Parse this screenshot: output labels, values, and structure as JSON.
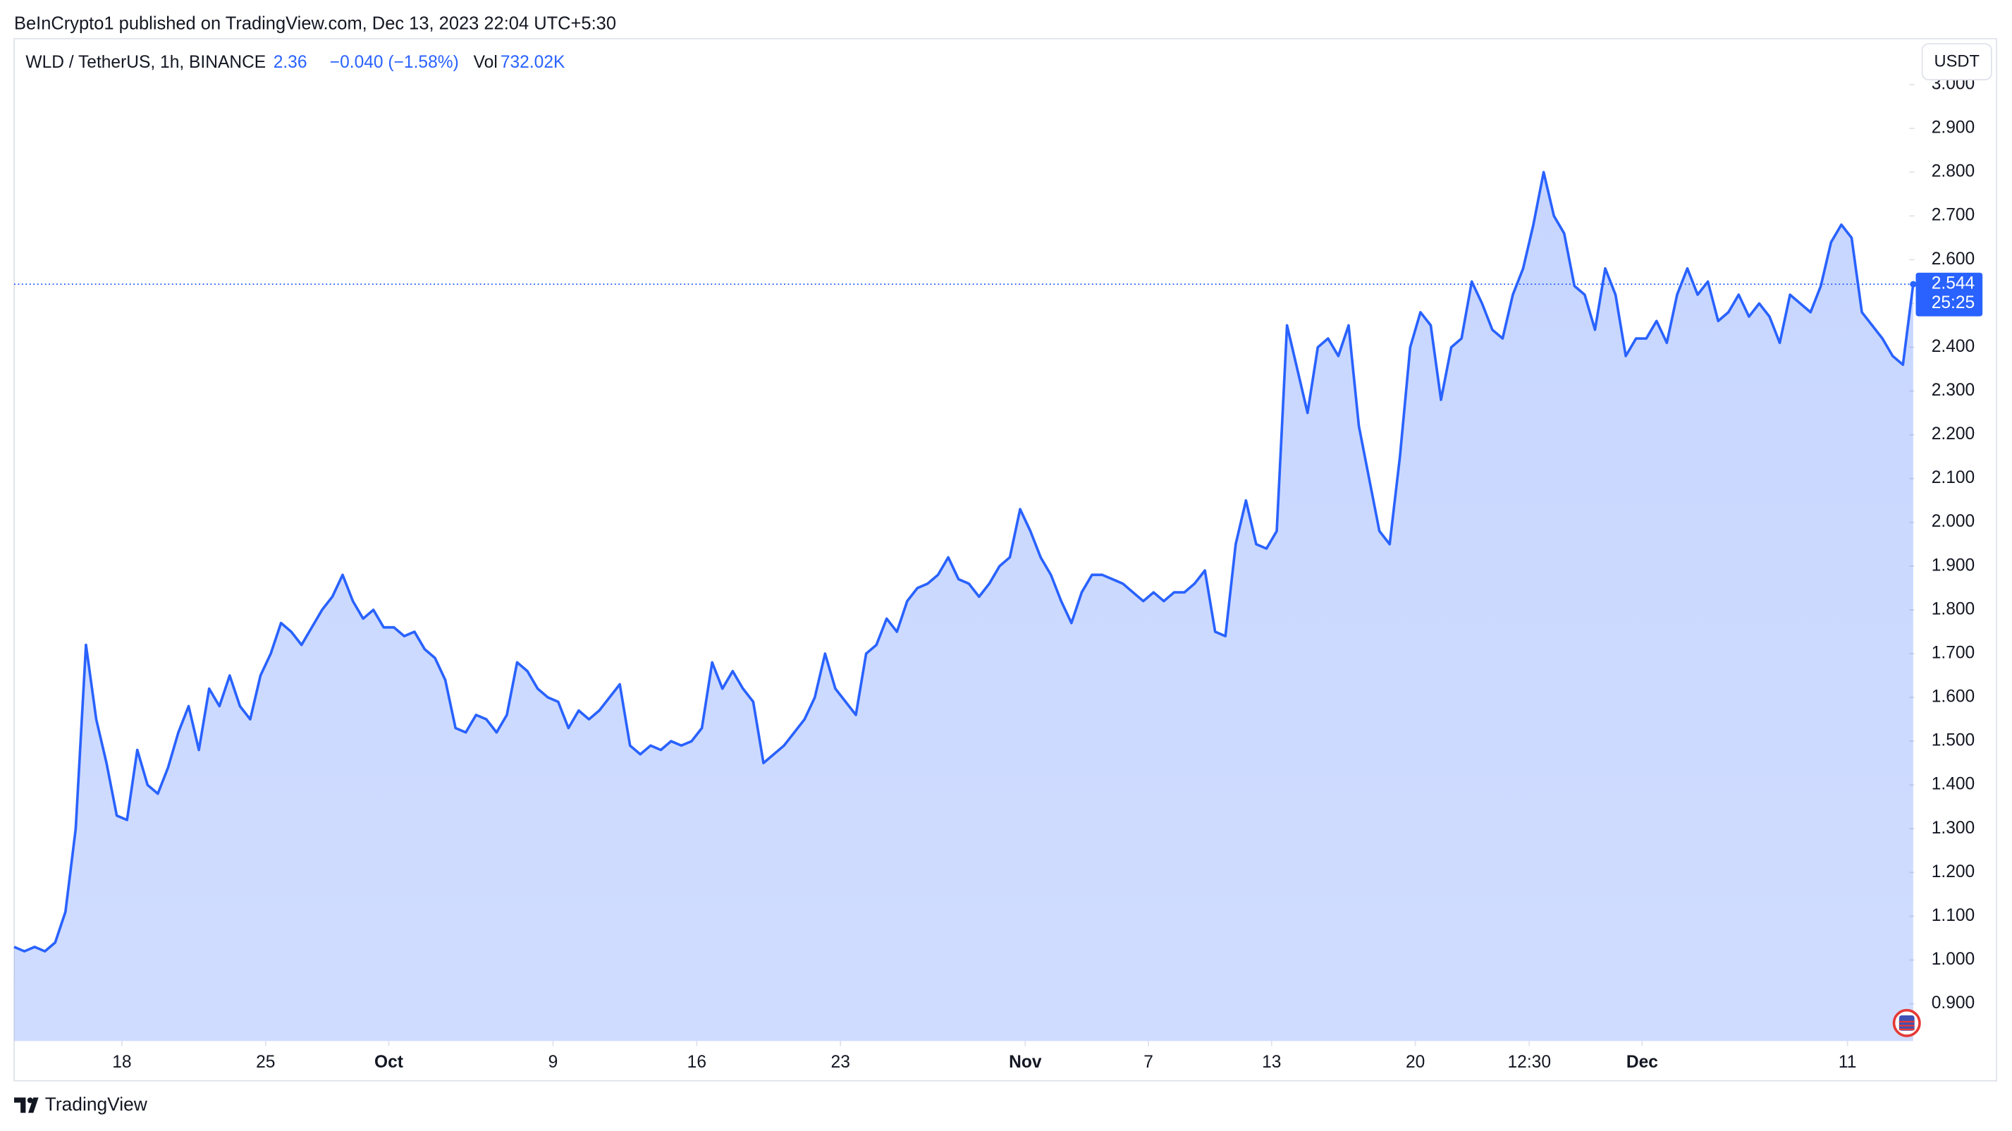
{
  "header": {
    "published": "BeInCrypto1 published on TradingView.com, Dec 13, 2023 22:04 UTC+5:30",
    "symbol": "WLD / TetherUS, 1h, BINANCE",
    "change": "−0.040 (−1.58%)",
    "vol_label": "Vol",
    "volume": "732.02K"
  },
  "unit_button": "USDT",
  "countdown": "25:25",
  "brand": "TradingView",
  "chart_data": {
    "type": "area",
    "color": "#2962ff",
    "grid": false,
    "last_price_line": true,
    "values": [
      1.03,
      1.02,
      1.03,
      1.02,
      1.04,
      1.11,
      1.3,
      1.72,
      1.55,
      1.45,
      1.33,
      1.32,
      1.48,
      1.4,
      1.38,
      1.44,
      1.52,
      1.58,
      1.48,
      1.62,
      1.58,
      1.65,
      1.58,
      1.55,
      1.65,
      1.7,
      1.77,
      1.75,
      1.72,
      1.76,
      1.8,
      1.83,
      1.88,
      1.82,
      1.78,
      1.8,
      1.76,
      1.76,
      1.74,
      1.75,
      1.71,
      1.69,
      1.64,
      1.53,
      1.52,
      1.56,
      1.55,
      1.52,
      1.56,
      1.68,
      1.66,
      1.62,
      1.6,
      1.59,
      1.53,
      1.57,
      1.55,
      1.57,
      1.6,
      1.63,
      1.49,
      1.47,
      1.49,
      1.48,
      1.5,
      1.49,
      1.5,
      1.53,
      1.68,
      1.62,
      1.66,
      1.62,
      1.59,
      1.45,
      1.47,
      1.49,
      1.52,
      1.55,
      1.6,
      1.7,
      1.62,
      1.59,
      1.56,
      1.7,
      1.72,
      1.78,
      1.75,
      1.82,
      1.85,
      1.86,
      1.88,
      1.92,
      1.87,
      1.86,
      1.83,
      1.86,
      1.9,
      1.92,
      2.03,
      1.98,
      1.92,
      1.88,
      1.82,
      1.77,
      1.84,
      1.88,
      1.88,
      1.87,
      1.86,
      1.84,
      1.82,
      1.84,
      1.82,
      1.84,
      1.84,
      1.86,
      1.89,
      1.75,
      1.74,
      1.95,
      2.05,
      1.95,
      1.94,
      1.98,
      2.45,
      2.35,
      2.25,
      2.4,
      2.42,
      2.38,
      2.45,
      2.22,
      2.1,
      1.98,
      1.95,
      2.15,
      2.4,
      2.48,
      2.45,
      2.28,
      2.4,
      2.42,
      2.55,
      2.5,
      2.44,
      2.42,
      2.52,
      2.58,
      2.68,
      2.8,
      2.7,
      2.66,
      2.54,
      2.52,
      2.44,
      2.58,
      2.52,
      2.38,
      2.42,
      2.42,
      2.46,
      2.41,
      2.52,
      2.58,
      2.52,
      2.55,
      2.46,
      2.48,
      2.52,
      2.47,
      2.5,
      2.47,
      2.41,
      2.52,
      2.5,
      2.48,
      2.54,
      2.64,
      2.68,
      2.65,
      2.48,
      2.45,
      2.42,
      2.38,
      2.36,
      2.544
    ],
    "xlim": [
      0,
      184
    ],
    "xticks": [
      {
        "value": 10.5,
        "label": "18"
      },
      {
        "value": 24.5,
        "label": "25"
      },
      {
        "value": 36.5,
        "label": "Oct"
      },
      {
        "value": 52.5,
        "label": "9"
      },
      {
        "value": 66.5,
        "label": "16"
      },
      {
        "value": 80.5,
        "label": "23"
      },
      {
        "value": 98.5,
        "label": "Nov"
      },
      {
        "value": 110.5,
        "label": "7"
      },
      {
        "value": 122.5,
        "label": "13"
      },
      {
        "value": 136.5,
        "label": "20"
      },
      {
        "value": 147.6,
        "label": "12:30"
      },
      {
        "value": 158.6,
        "label": "Dec"
      },
      {
        "value": 178.6,
        "label": "11"
      }
    ],
    "ylim": [
      0.815,
      3.105
    ],
    "yticks": [
      {
        "value": 0.9,
        "label": "0.900"
      },
      {
        "value": 1.0,
        "label": "1.000"
      },
      {
        "value": 1.1,
        "label": "1.100"
      },
      {
        "value": 1.2,
        "label": "1.200"
      },
      {
        "value": 1.3,
        "label": "1.300"
      },
      {
        "value": 1.4,
        "label": "1.400"
      },
      {
        "value": 1.5,
        "label": "1.500"
      },
      {
        "value": 1.6,
        "label": "1.600"
      },
      {
        "value": 1.7,
        "label": "1.700"
      },
      {
        "value": 1.8,
        "label": "1.800"
      },
      {
        "value": 1.9,
        "label": "1.900"
      },
      {
        "value": 2.0,
        "label": "2.000"
      },
      {
        "value": 2.1,
        "label": "2.100"
      },
      {
        "value": 2.2,
        "label": "2.200"
      },
      {
        "value": 2.3,
        "label": "2.300"
      },
      {
        "value": 2.4,
        "label": "2.400"
      },
      {
        "value": 2.5,
        "label": "2.500"
      },
      {
        "value": 2.6,
        "label": "2.600"
      },
      {
        "value": 2.7,
        "label": "2.700"
      },
      {
        "value": 2.8,
        "label": "2.800"
      },
      {
        "value": 2.9,
        "label": "2.900"
      },
      {
        "value": 3.0,
        "label": "3.000"
      }
    ]
  }
}
